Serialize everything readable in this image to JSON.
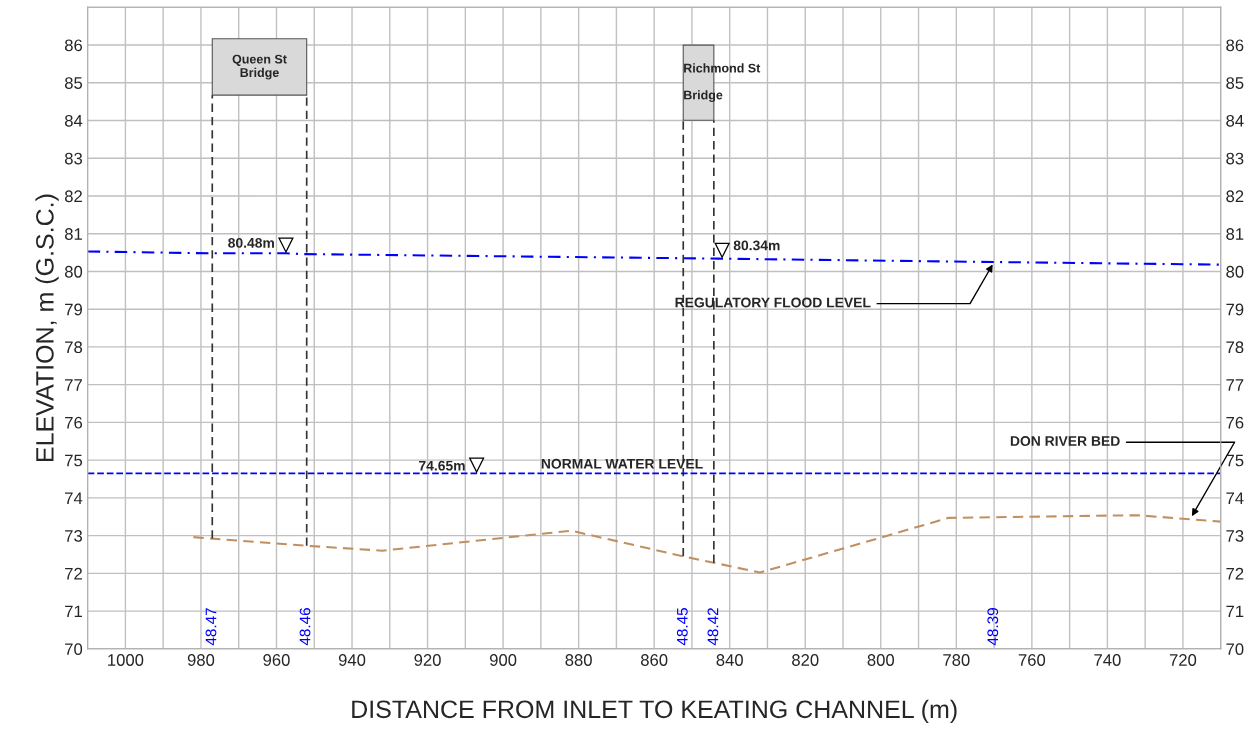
{
  "chart_data": {
    "type": "line",
    "xlabel": "DISTANCE FROM INLET TO KEATING CHANNEL (m)",
    "ylabel": "ELEVATION, m (G.S.C.)",
    "xlim": [
      1010,
      710
    ],
    "xticks": [
      1000,
      {
        "value": 990,
        "label": null
      },
      980,
      {
        "value": 970,
        "label": null
      },
      960,
      {
        "value": 950,
        "label": null
      },
      940,
      {
        "value": 930,
        "label": null
      },
      920,
      {
        "value": 910,
        "label": null
      },
      900,
      {
        "value": 890,
        "label": null
      },
      880,
      {
        "value": 870,
        "label": null
      },
      860,
      {
        "value": 850,
        "label": null
      },
      840,
      {
        "value": 830,
        "label": null
      },
      820,
      {
        "value": 810,
        "label": null
      },
      800,
      {
        "value": 790,
        "label": null
      },
      780,
      {
        "value": 770,
        "label": null
      },
      760,
      {
        "value": 750,
        "label": null
      },
      740,
      {
        "value": 730,
        "label": null
      },
      720
    ],
    "ylim": [
      70,
      87
    ],
    "yticks": [
      70,
      71,
      72,
      73,
      74,
      75,
      76,
      77,
      78,
      79,
      80,
      81,
      82,
      83,
      84,
      85,
      86
    ],
    "y2lim": [
      70,
      87
    ],
    "y2ticks": [
      70,
      71,
      72,
      73,
      74,
      75,
      76,
      77,
      78,
      79,
      80,
      81,
      82,
      83,
      84,
      85,
      86
    ],
    "grid": true,
    "series": [
      {
        "color": "#0000ff",
        "line_style": "dashed",
        "x": [
          1010,
          977,
          957.5,
          953,
          843,
          770,
          710
        ],
        "values": [
          80.53,
          80.48,
          80.48,
          80.46,
          80.34,
          80.25,
          80.18
        ]
      },
      {
        "color": "#c09060",
        "line_style": "dashed",
        "x": [
          982,
          977,
          952,
          932,
          882,
          852.3,
          844.2,
          832,
          782,
          732,
          710
        ],
        "values": [
          72.96,
          72.92,
          72.73,
          72.6,
          73.13,
          72.45,
          72.28,
          72.02,
          73.47,
          73.54,
          73.37
        ]
      },
      {
        "color": "#333333",
        "line_style": "dashed",
        "x": [
          977,
          977
        ],
        "values": [
          72.92,
          84.67
        ]
      },
      {
        "color": "#333333",
        "line_style": "dashed",
        "x": [
          952,
          952
        ],
        "values": [
          72.73,
          84.67
        ]
      },
      {
        "color": "#333333",
        "line_style": "dashed",
        "x": [
          852.3,
          852.3
        ],
        "values": [
          72.45,
          84.0
        ]
      },
      {
        "color": "#333333",
        "line_style": "dashed",
        "x": [
          844.2,
          844.2
        ],
        "values": [
          72.28,
          84.0
        ]
      }
    ],
    "ref_lines": [
      {
        "axis": "y",
        "value": 74.65,
        "label": "NORMAL WATER LEVEL",
        "color": "#0000ff",
        "line_style": "dashed"
      }
    ],
    "bands": [
      {
        "axis": "x",
        "from": 977,
        "to": 952,
        "label": "Queen St\nBridge",
        "color": "#d9d9d9"
      },
      {
        "axis": "x",
        "from": 852.3,
        "to": 844.2,
        "label": "Richmond St\n\nBridge",
        "color": "#d9d9d9"
      }
    ],
    "annotations": [
      {
        "text": "80.48m",
        "x": 957.5,
        "y": 80.48
      },
      {
        "text": "80.34m",
        "x": 842,
        "y": 80.34
      },
      {
        "text": "74.65m",
        "x": 907,
        "y": 74.65
      },
      {
        "text": "REGULATORY FLOOD LEVEL",
        "x": 770,
        "y": 80.25
      },
      {
        "text": "DON RIVER BED",
        "x": 718,
        "y": 73.45
      },
      "48.47",
      "48.46",
      "48.45",
      "48.42",
      "48.39"
    ]
  }
}
